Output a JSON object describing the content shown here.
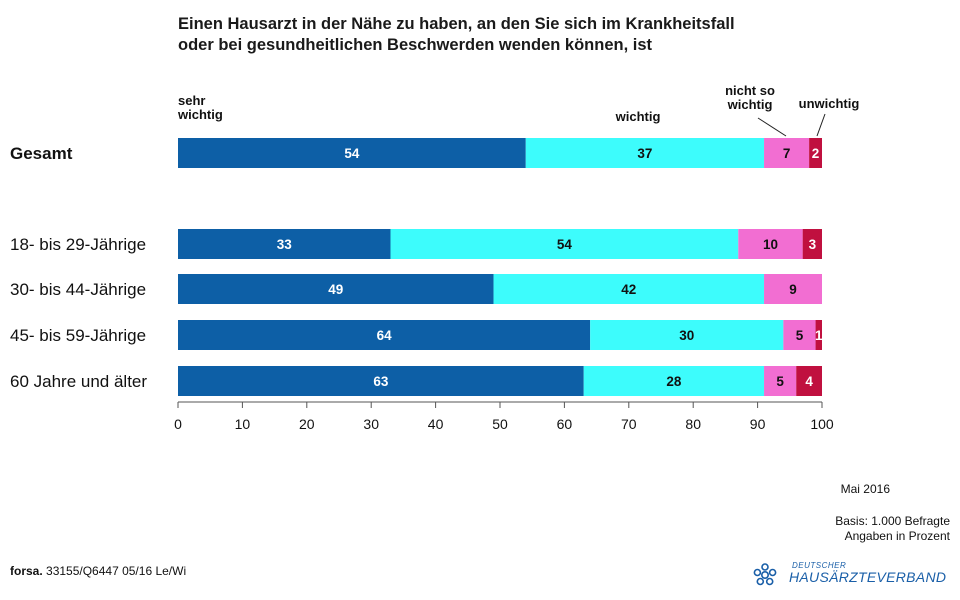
{
  "chart_data": {
    "type": "bar",
    "orientation": "horizontal",
    "stacked": true,
    "title": "Einen Hausarzt in der Nähe zu haben, an den Sie sich im Krankheitsfall oder bei gesundheitlichen Beschwerden wenden können, ist",
    "title_lines": [
      "Einen Hausarzt in der Nähe zu haben, an den Sie sich im Krankheitsfall",
      "oder bei gesundheitlichen Beschwerden wenden können, ist"
    ],
    "categories": [
      "Gesamt",
      "18- bis 29-Jährige",
      "30- bis 44-Jährige",
      "45- bis 59-Jährige",
      "60 Jahre und älter"
    ],
    "series": [
      {
        "name": "sehr wichtig",
        "name_lines": [
          "sehr",
          "wichtig"
        ],
        "color": "#0d5fa6",
        "values": [
          54,
          33,
          49,
          64,
          63
        ]
      },
      {
        "name": "wichtig",
        "name_lines": [
          "wichtig"
        ],
        "color": "#3dfcfc",
        "values": [
          37,
          54,
          42,
          30,
          28
        ]
      },
      {
        "name": "nicht so wichtig",
        "name_lines": [
          "nicht so",
          "wichtig"
        ],
        "color": "#f26ed2",
        "values": [
          7,
          10,
          9,
          5,
          5
        ]
      },
      {
        "name": "unwichtig",
        "name_lines": [
          "unwichtig"
        ],
        "color": "#c0103f",
        "values": [
          2,
          3,
          0,
          1,
          4
        ]
      }
    ],
    "xlim": [
      0,
      100
    ],
    "xticks": [
      0,
      10,
      20,
      30,
      40,
      50,
      60,
      70,
      80,
      90,
      100
    ],
    "grid": false,
    "legend": "above bars"
  },
  "notes": {
    "date": "Mai 2016",
    "basis": "Basis: 1.000 Befragte",
    "unit": "Angaben in Prozent"
  },
  "footer": {
    "source_brand": "forsa.",
    "source_code": " 33155/Q6447 05/16 Le/Wi"
  },
  "logo": {
    "small": "DEUTSCHER",
    "big": "HAUSÄRZTEVERBAND",
    "icon": "snowflake-star-icon"
  }
}
